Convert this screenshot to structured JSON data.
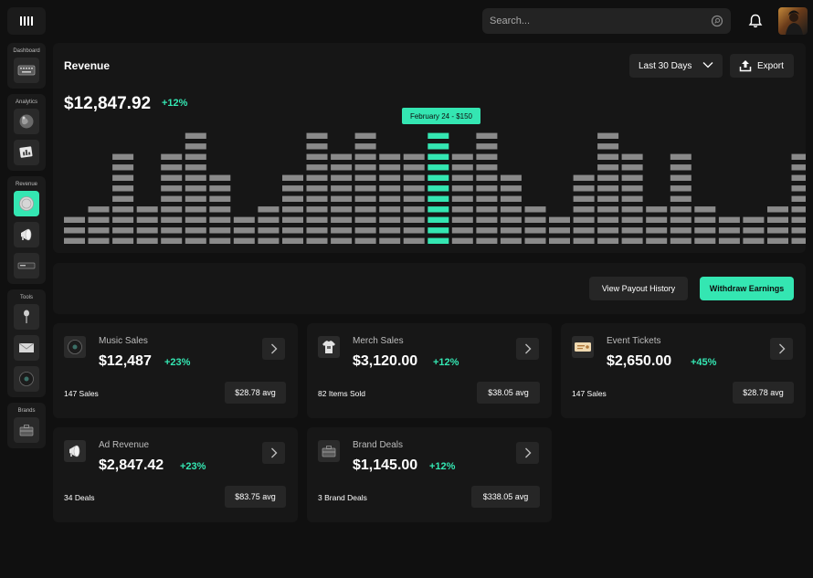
{
  "header": {
    "search_placeholder": "Search...",
    "avatar_name": "user-avatar"
  },
  "sidebar": {
    "groups": [
      {
        "label": "Dashboard",
        "items": [
          "keyboard-icon"
        ]
      },
      {
        "label": "Analytics",
        "items": [
          "globe-icon",
          "chart-card-icon"
        ]
      },
      {
        "label": "Revenue",
        "items": [
          "coin-icon",
          "megaphone-icon",
          "wallet-icon"
        ]
      },
      {
        "label": "Tools",
        "items": [
          "microphone-icon",
          "envelope-icon",
          "vinyl-icon"
        ]
      },
      {
        "label": "Brands",
        "items": [
          "briefcase-icon"
        ]
      }
    ],
    "active_item": "coin-icon"
  },
  "revenue": {
    "title": "Revenue",
    "range_label": "Last 30 Days",
    "export_label": "Export",
    "total": "$12,847.92",
    "change": "+12%",
    "tooltip": "February 24 - $150",
    "highlight_index": 15
  },
  "chart_data": {
    "type": "bar",
    "x": [
      "d1",
      "d2",
      "d3",
      "d4",
      "d5",
      "d6",
      "d7",
      "d8",
      "d9",
      "d10",
      "d11",
      "d12",
      "d13",
      "d14",
      "d15",
      "d16",
      "d17",
      "d18",
      "d19",
      "d20",
      "d21",
      "d22",
      "d23",
      "d24",
      "d25",
      "d26",
      "d27",
      "d28",
      "d29",
      "d30",
      "d31",
      "d32"
    ],
    "values": [
      3,
      4,
      9,
      4,
      9,
      11,
      7,
      3,
      4,
      7,
      11,
      9,
      11,
      9,
      9,
      11,
      9,
      11,
      7,
      4,
      3,
      7,
      11,
      9,
      4,
      9,
      4,
      3,
      3,
      4,
      9,
      9
    ],
    "unit": "segments",
    "highlight_color": "#34e6b2",
    "bar_color": "#8a8a8a"
  },
  "actions": {
    "payout_history": "View Payout History",
    "withdraw": "Withdraw Earnings"
  },
  "cards": [
    {
      "name": "Music Sales",
      "amount": "$12,487",
      "change": "+23%",
      "count": "147 Sales",
      "avg": "$28.78 avg",
      "icon": "vinyl-icon"
    },
    {
      "name": "Merch Sales",
      "amount": "$3,120.00",
      "change": "+12%",
      "count": "82 Items Sold",
      "avg": "$38.05 avg",
      "icon": "shirt-icon"
    },
    {
      "name": "Event Tickets",
      "amount": "$2,650.00",
      "change": "+45%",
      "count": "147 Sales",
      "avg": "$28.78 avg",
      "icon": "ticket-icon"
    },
    {
      "name": "Ad Revenue",
      "amount": "$2,847.42",
      "change": "+23%",
      "count": "34 Deals",
      "avg": "$83.75 avg",
      "icon": "megaphone-icon"
    },
    {
      "name": "Brand Deals",
      "amount": "$1,145.00",
      "change": "+12%",
      "count": "3 Brand Deals",
      "avg": "$338.05 avg",
      "icon": "briefcase-icon"
    }
  ]
}
